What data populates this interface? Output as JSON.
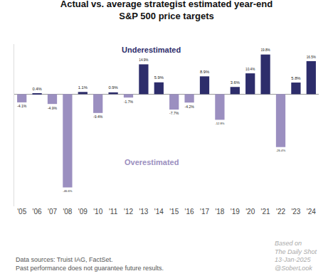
{
  "chart_data": {
    "type": "bar",
    "title": "Actual vs. average strategist estimated year-end",
    "subtitle": "S&P 500 price targets",
    "categories": [
      "'05",
      "'06",
      "'07",
      "'08",
      "'09",
      "'10",
      "'11",
      "'12",
      "'13",
      "'14",
      "'15",
      "'16",
      "'17",
      "'18",
      "'19",
      "'20",
      "'21",
      "'22",
      "'23",
      "'24"
    ],
    "values": [
      -4.1,
      0.4,
      -4.9,
      -46.6,
      1.1,
      -9.4,
      0.9,
      -1.7,
      14.9,
      5.9,
      -7.7,
      -4.2,
      8.9,
      -12.8,
      3.6,
      10.4,
      19.8,
      -26.4,
      5.8,
      16.5
    ],
    "value_labels": [
      "-4.1%",
      "0.4%",
      "-4.9%",
      "-46.6%",
      "1.1%",
      "-9.4%",
      "0.9%",
      "-1.7%",
      "14.9%",
      "5.9%",
      "-7.7%",
      "-4.2%",
      "8.9%",
      "-12.8%",
      "3.6%",
      "10.4%",
      "19.8%",
      "-26.4%",
      "5.8%",
      "16.5%"
    ],
    "colors": [
      "#9b8fc0",
      "#2d2d6b",
      "#9b8fc0",
      "#9b8fc0",
      "#2d2d6b",
      "#9b8fc0",
      "#2d2d6b",
      "#9b8fc0",
      "#2d2d6b",
      "#2d2d6b",
      "#9b8fc0",
      "#9b8fc0",
      "#2d2d6b",
      "#9b8fc0",
      "#2d2d6b",
      "#2d2d6b",
      "#2d2d6b",
      "#9b8fc0",
      "#2d2d6b",
      "#2d2d6b"
    ],
    "ylim": [
      -56,
      25
    ],
    "grid": false,
    "data_labels": true,
    "tick_labels": "x",
    "annotations": [
      {
        "text": "Underestimated",
        "color": "#2d2d6b"
      },
      {
        "text": "Overestimated",
        "color": "#9b8fc0"
      },
      {
        "text": "Based on"
      },
      {
        "text": "The Daily Shot"
      },
      {
        "text": "13-Jan-2025"
      },
      {
        "text": "@SoberLook"
      },
      {
        "text": "Data sources: Truist IAG, FactSet."
      },
      {
        "text": "Past performance does not guarantee future results."
      }
    ]
  }
}
